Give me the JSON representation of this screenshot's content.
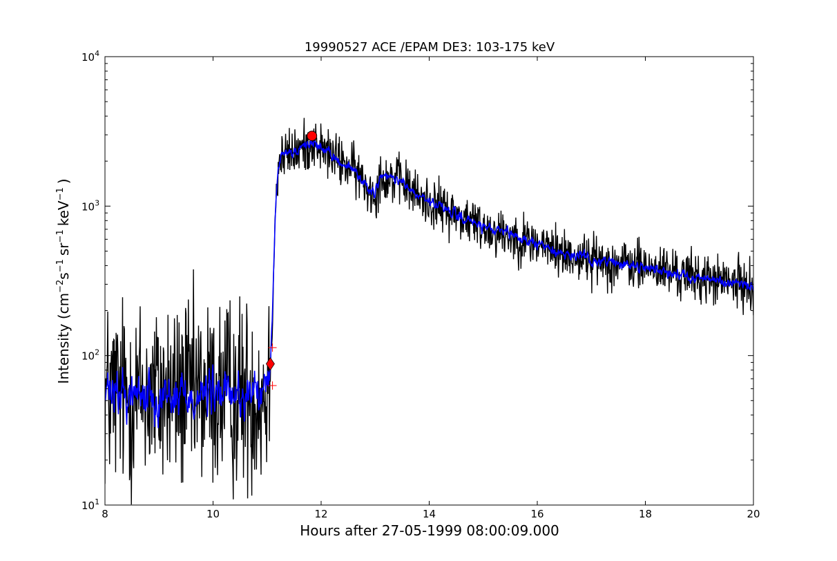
{
  "chart_data": {
    "type": "line",
    "title": "19990527 ACE /EPAM DE3: 103-175 keV",
    "xlabel": "Hours after 27-05-1999 08:00:09.000",
    "ylabel_parts": {
      "prefix": "Intensity (cm",
      "exp_cm": "−2",
      "s": "s",
      "exp_s": "−1",
      "sr": "sr",
      "exp_sr": "−1",
      "kev": "keV",
      "exp_kev": "−1",
      "suffix": ")"
    },
    "xlim": [
      8,
      20
    ],
    "ylim": [
      10,
      10000
    ],
    "yscale": "log",
    "grid": false,
    "x_ticks": [
      8,
      10,
      12,
      14,
      16,
      18,
      20
    ],
    "x_tick_labels": [
      "8",
      "10",
      "12",
      "14",
      "16",
      "18",
      "20"
    ],
    "y_ticks": [
      {
        "base": "10",
        "exp": "1"
      },
      {
        "base": "10",
        "exp": "2"
      },
      {
        "base": "10",
        "exp": "3"
      },
      {
        "base": "10",
        "exp": "4"
      }
    ],
    "series": [
      {
        "role": "raw",
        "color": "#000000",
        "profile": [
          [
            8.0,
            55
          ],
          [
            10.95,
            55
          ],
          [
            11.02,
            62
          ],
          [
            11.06,
            85
          ],
          [
            11.1,
            200
          ],
          [
            11.15,
            900
          ],
          [
            11.22,
            2000
          ],
          [
            11.35,
            2200
          ],
          [
            11.55,
            2300
          ],
          [
            11.85,
            2700
          ],
          [
            12.2,
            2150
          ],
          [
            12.6,
            1750
          ],
          [
            12.85,
            1350
          ],
          [
            13.0,
            1200
          ],
          [
            13.1,
            1600
          ],
          [
            13.5,
            1450
          ],
          [
            13.8,
            1150
          ],
          [
            14.3,
            950
          ],
          [
            15.0,
            720
          ],
          [
            15.5,
            640
          ],
          [
            16.0,
            560
          ],
          [
            16.5,
            480
          ],
          [
            17.0,
            440
          ],
          [
            18.0,
            390
          ],
          [
            19.0,
            330
          ],
          [
            20.0,
            290
          ]
        ],
        "noise_pre": 0.5,
        "noise_post": 0.13
      },
      {
        "role": "smoothed",
        "color": "#0000ff",
        "profile": [
          [
            8.0,
            55
          ],
          [
            10.95,
            55
          ],
          [
            11.02,
            62
          ],
          [
            11.06,
            85
          ],
          [
            11.1,
            200
          ],
          [
            11.15,
            900
          ],
          [
            11.22,
            2000
          ],
          [
            11.35,
            2200
          ],
          [
            11.55,
            2300
          ],
          [
            11.85,
            2700
          ],
          [
            12.2,
            2150
          ],
          [
            12.6,
            1750
          ],
          [
            12.85,
            1350
          ],
          [
            13.0,
            1200
          ],
          [
            13.1,
            1600
          ],
          [
            13.5,
            1450
          ],
          [
            13.8,
            1150
          ],
          [
            14.3,
            950
          ],
          [
            15.0,
            720
          ],
          [
            15.5,
            640
          ],
          [
            16.0,
            560
          ],
          [
            16.5,
            480
          ],
          [
            17.0,
            440
          ],
          [
            18.0,
            390
          ],
          [
            19.0,
            330
          ],
          [
            20.0,
            290
          ]
        ],
        "noise_pre": 0.22,
        "noise_post": 0.05
      }
    ],
    "markers": [
      {
        "shape": "circle",
        "x": 11.83,
        "y": 2950,
        "color": "#ff0000"
      },
      {
        "shape": "diamond",
        "x": 11.06,
        "y": 88,
        "color": "#ff0000"
      },
      {
        "shape": "plus",
        "x": 11.1,
        "y": 113,
        "color": "#ff0000"
      },
      {
        "shape": "plus",
        "x": 11.1,
        "y": 63,
        "color": "#ff0000"
      }
    ]
  }
}
